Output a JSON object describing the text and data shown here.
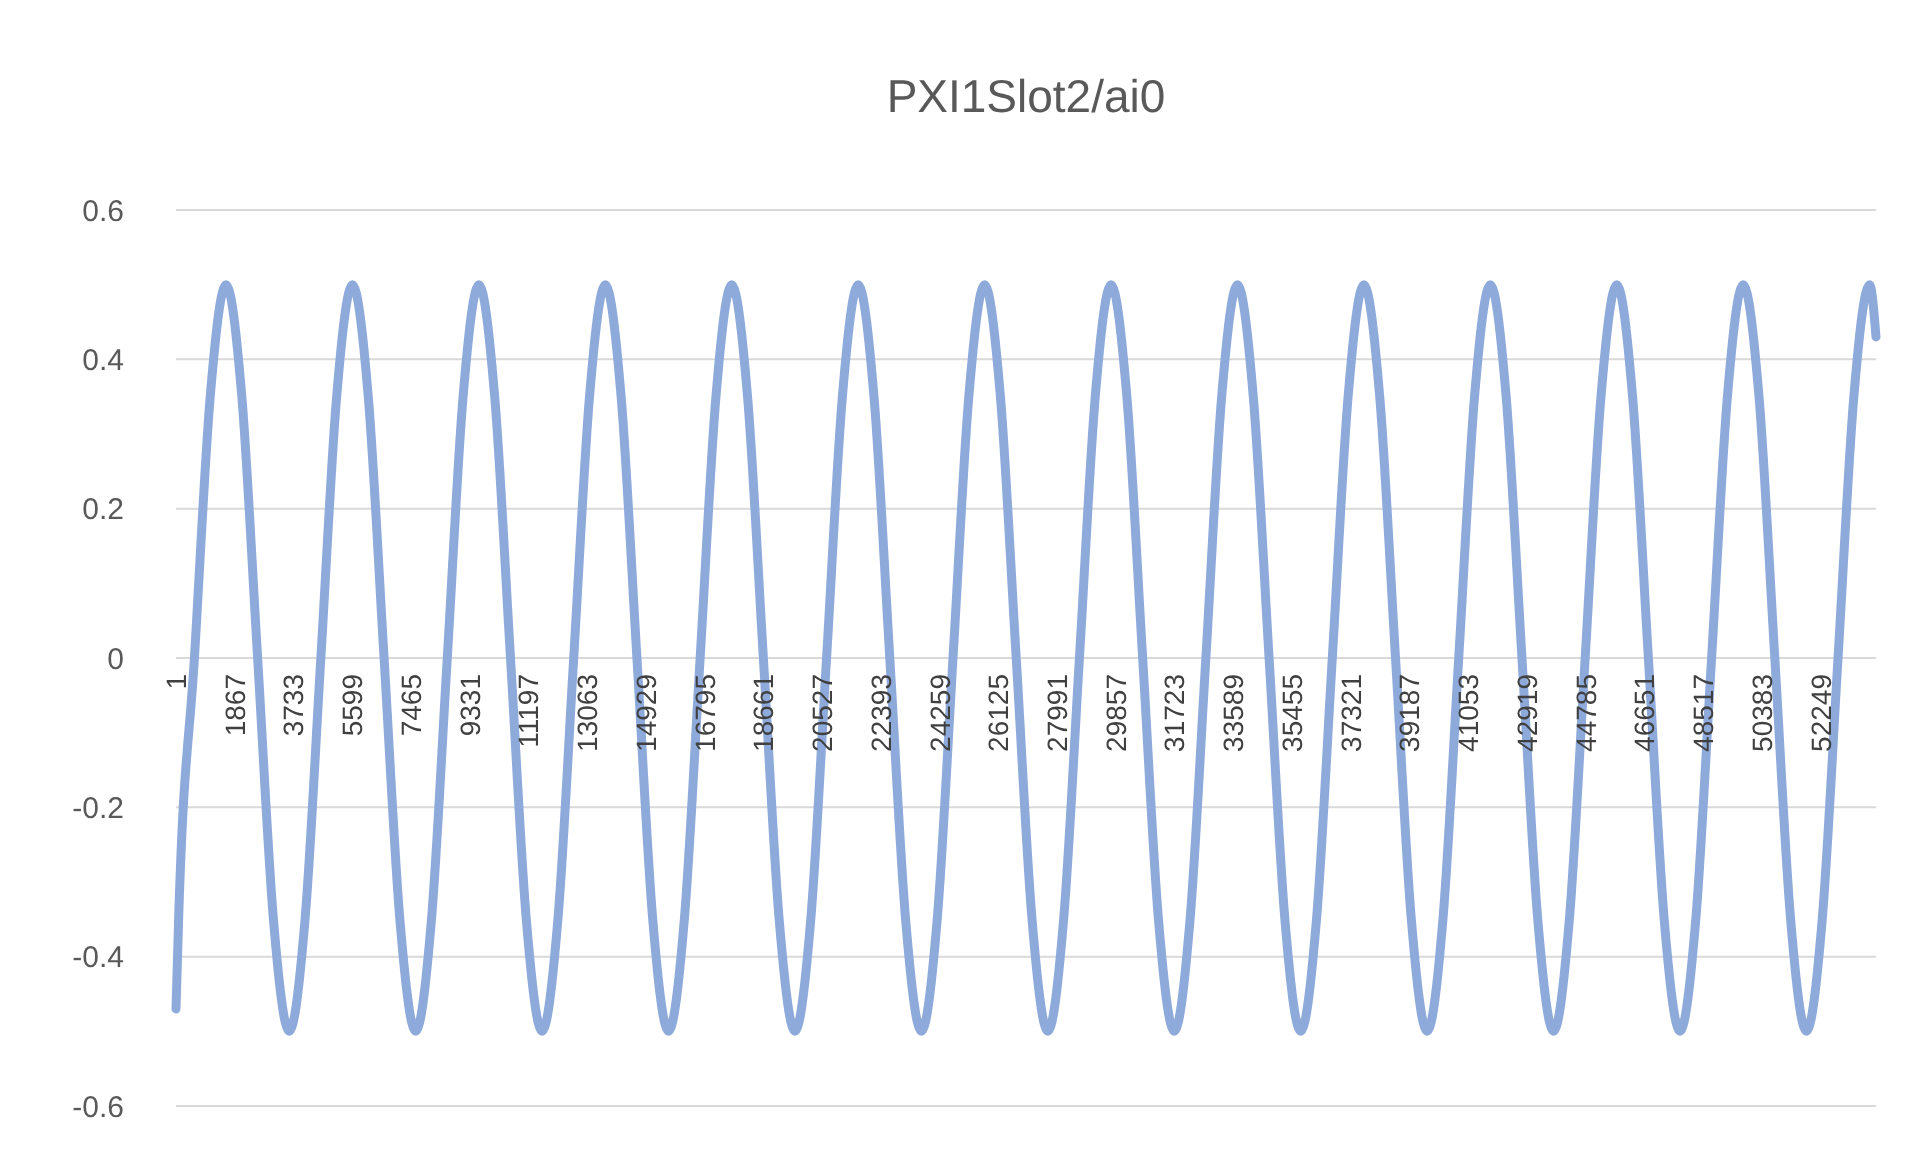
{
  "chart_data": {
    "type": "line",
    "title": "PXI1Slot2/ai0",
    "x": [
      1,
      84,
      586,
      1088,
      1590,
      2092,
      2594,
      3096,
      3598,
      4100,
      4602,
      5104,
      5606,
      6108,
      6610,
      7112,
      7614,
      8116,
      8618,
      9120,
      9622,
      10124,
      10626,
      11128,
      11630,
      12132,
      12634,
      13136,
      13638,
      14140,
      14642,
      15144,
      15646,
      16148,
      16650,
      17152,
      17654,
      18156,
      18658,
      19160,
      19662,
      20164,
      20666,
      21168,
      21670,
      22172,
      22674,
      23176,
      23678,
      24180,
      24682,
      25184,
      25686,
      26188,
      26690,
      27192,
      27694,
      28196,
      28698,
      29200,
      29702,
      30204,
      30706,
      31208,
      31710,
      32212,
      32714,
      33216,
      33718,
      34220,
      34722,
      35224,
      35726,
      36228,
      36730,
      37232,
      37734,
      38236,
      38738,
      39240,
      39742,
      40244,
      40746,
      41248,
      41750,
      42252,
      42754,
      43256,
      43758,
      44260,
      44762,
      45264,
      45766,
      46268,
      46770,
      47272,
      47774,
      48276,
      48778,
      49280,
      49782,
      50284,
      50786,
      51288,
      51790,
      52292,
      52794,
      53296,
      53798,
      54000
    ],
    "series": [
      {
        "color": "#8eaadb",
        "values": [
          -0.47,
          -0.35,
          0,
          0.35,
          0.5,
          0.35,
          0,
          -0.35,
          -0.5,
          -0.35,
          0,
          0.35,
          0.5,
          0.35,
          0,
          -0.35,
          -0.5,
          -0.35,
          0,
          0.35,
          0.5,
          0.35,
          0,
          -0.35,
          -0.5,
          -0.35,
          0,
          0.35,
          0.5,
          0.35,
          0,
          -0.35,
          -0.5,
          -0.35,
          0,
          0.35,
          0.5,
          0.35,
          0,
          -0.35,
          -0.5,
          -0.35,
          0,
          0.35,
          0.5,
          0.35,
          0,
          -0.35,
          -0.5,
          -0.35,
          0,
          0.35,
          0.5,
          0.35,
          0,
          -0.35,
          -0.5,
          -0.35,
          0,
          0.35,
          0.5,
          0.35,
          0,
          -0.35,
          -0.5,
          -0.35,
          0,
          0.35,
          0.5,
          0.35,
          0,
          -0.35,
          -0.5,
          -0.35,
          0,
          0.35,
          0.5,
          0.35,
          0,
          -0.35,
          -0.5,
          -0.35,
          0,
          0.35,
          0.5,
          0.35,
          0,
          -0.35,
          -0.5,
          -0.35,
          0,
          0.35,
          0.5,
          0.35,
          0,
          -0.35,
          -0.5,
          -0.35,
          0,
          0.35,
          0.5,
          0.35,
          0,
          -0.35,
          -0.5,
          -0.35,
          0,
          0.35,
          0.5,
          0.43
        ]
      }
    ],
    "xlim": [
      1,
      54000
    ],
    "xticks": [
      1,
      1867,
      3733,
      5599,
      7465,
      9331,
      11197,
      13063,
      14929,
      16795,
      18661,
      20527,
      22393,
      24259,
      26125,
      27991,
      29857,
      31723,
      33589,
      35455,
      37321,
      39187,
      41053,
      42919,
      44785,
      46651,
      48517,
      50383,
      52249
    ],
    "ylim": [
      -0.6,
      0.6
    ],
    "yticks": [
      -0.6,
      -0.4,
      -0.2,
      0,
      0.2,
      0.4,
      0.6
    ],
    "grid": "y"
  }
}
